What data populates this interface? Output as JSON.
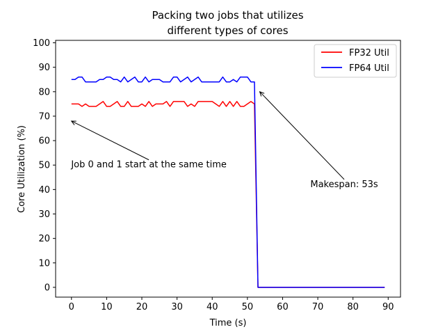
{
  "chart_data": {
    "type": "line",
    "title_lines": [
      "Packing two jobs that utilizes",
      "different types of cores"
    ],
    "xlabel": "Time (s)",
    "ylabel": "Core Utilization (%)",
    "xlim": [
      -4.5,
      93.5
    ],
    "ylim": [
      -4,
      101
    ],
    "xticks": [
      0,
      10,
      20,
      30,
      40,
      50,
      60,
      70,
      80,
      90
    ],
    "yticks": [
      0,
      10,
      20,
      30,
      40,
      50,
      60,
      70,
      80,
      90,
      100
    ],
    "grid": false,
    "legend_position": "top-right",
    "x": [
      0,
      1,
      2,
      3,
      4,
      5,
      6,
      7,
      8,
      9,
      10,
      11,
      12,
      13,
      14,
      15,
      16,
      17,
      18,
      19,
      20,
      21,
      22,
      23,
      24,
      25,
      26,
      27,
      28,
      29,
      30,
      31,
      32,
      33,
      34,
      35,
      36,
      37,
      38,
      39,
      40,
      41,
      42,
      43,
      44,
      45,
      46,
      47,
      48,
      49,
      50,
      51,
      52,
      53,
      54,
      55,
      56,
      57,
      58,
      59,
      60,
      61,
      62,
      63,
      64,
      65,
      66,
      67,
      68,
      69,
      70,
      71,
      72,
      73,
      74,
      75,
      76,
      77,
      78,
      79,
      80,
      81,
      82,
      83,
      84,
      85,
      86,
      87,
      88,
      89
    ],
    "series": [
      {
        "name": "FP32 Util",
        "color": "#ff0000",
        "values": [
          75,
          75,
          75,
          74,
          75,
          74,
          74,
          74,
          75,
          76,
          74,
          74,
          75,
          76,
          74,
          74,
          76,
          74,
          74,
          74,
          75,
          74,
          76,
          74,
          75,
          75,
          75,
          76,
          74,
          76,
          76,
          76,
          76,
          74,
          75,
          74,
          76,
          76,
          76,
          76,
          76,
          75,
          74,
          76,
          74,
          76,
          74,
          76,
          74,
          74,
          75,
          76,
          75,
          0,
          0,
          0,
          0,
          0,
          0,
          0,
          0,
          0,
          0,
          0,
          0,
          0,
          0,
          0,
          0,
          0,
          0,
          0,
          0,
          0,
          0,
          0,
          0,
          0,
          0,
          0,
          0,
          0,
          0,
          0,
          0,
          0,
          0,
          0,
          0,
          0
        ]
      },
      {
        "name": "FP64 Util",
        "color": "#0000ff",
        "values": [
          85,
          85,
          86,
          86,
          84,
          84,
          84,
          84,
          85,
          85,
          86,
          86,
          85,
          85,
          84,
          86,
          84,
          85,
          86,
          84,
          84,
          86,
          84,
          85,
          85,
          85,
          84,
          84,
          84,
          86,
          86,
          84,
          85,
          86,
          84,
          85,
          86,
          84,
          84,
          84,
          84,
          84,
          84,
          86,
          84,
          84,
          85,
          84,
          86,
          86,
          86,
          84,
          84,
          0,
          0,
          0,
          0,
          0,
          0,
          0,
          0,
          0,
          0,
          0,
          0,
          0,
          0,
          0,
          0,
          0,
          0,
          0,
          0,
          0,
          0,
          0,
          0,
          0,
          0,
          0,
          0,
          0,
          0,
          0,
          0,
          0,
          0,
          0,
          0,
          0
        ]
      }
    ],
    "annotations": [
      {
        "text": "Job 0 and 1 start at the same time",
        "point": [
          0,
          68
        ],
        "text_at": [
          22,
          49
        ]
      },
      {
        "text": "Makespan: 53s",
        "point": [
          53.5,
          80
        ],
        "text_at": [
          77.5,
          41
        ]
      }
    ]
  }
}
